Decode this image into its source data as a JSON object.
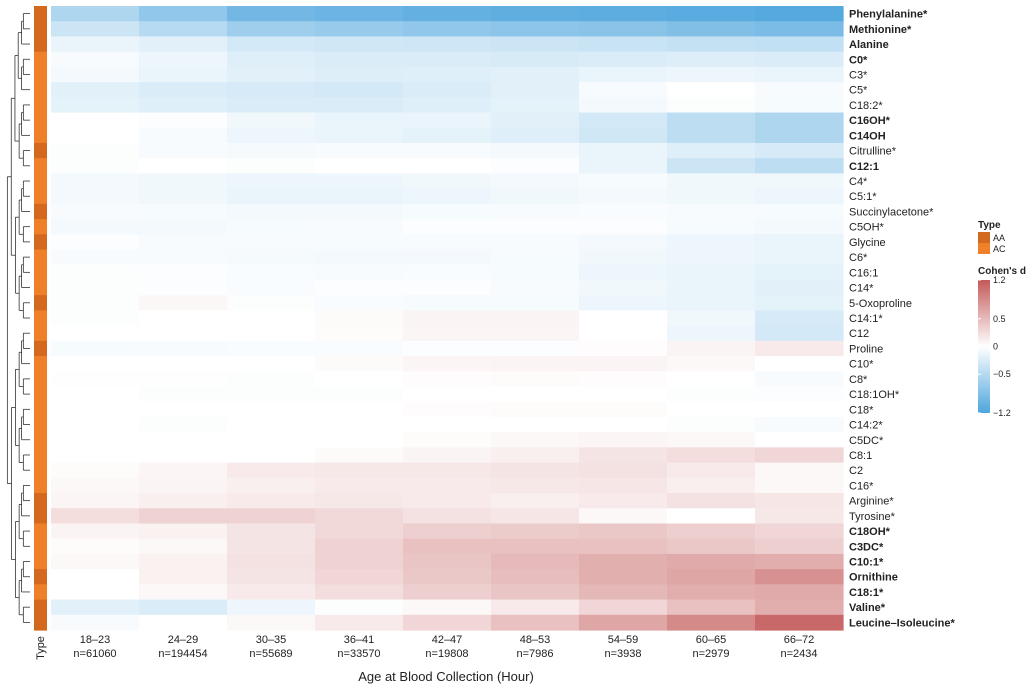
{
  "colors": {
    "AA": "#d2691e",
    "AC": "#f07f2a",
    "neg": "#4ea5dd",
    "mid": "#ffffff",
    "pos": "#c45a5a"
  },
  "chart_data": {
    "type": "heatmap",
    "xlabel": "Age at Blood Collection (Hour)",
    "annotation_label": "Type",
    "columns": [
      {
        "age": "18–23",
        "n": "n=61060"
      },
      {
        "age": "24–29",
        "n": "n=194454"
      },
      {
        "age": "30–35",
        "n": "n=55689"
      },
      {
        "age": "36–41",
        "n": "n=33570"
      },
      {
        "age": "42–47",
        "n": "n=19808"
      },
      {
        "age": "48–53",
        "n": "n=7986"
      },
      {
        "age": "54–59",
        "n": "n=3938"
      },
      {
        "age": "60–65",
        "n": "n=2979"
      },
      {
        "age": "66–72",
        "n": "n=2434"
      }
    ],
    "rows": [
      {
        "label": "Phenylalanine*",
        "bold": true,
        "type": "AA",
        "values": [
          -0.55,
          -0.75,
          -0.95,
          -1.0,
          -1.05,
          -1.08,
          -1.1,
          -1.12,
          -1.15
        ]
      },
      {
        "label": "Methionine*",
        "bold": true,
        "type": "AA",
        "values": [
          -0.35,
          -0.5,
          -0.65,
          -0.7,
          -0.75,
          -0.78,
          -0.8,
          -0.85,
          -0.9
        ]
      },
      {
        "label": "Alanine",
        "bold": true,
        "type": "AA",
        "values": [
          -0.15,
          -0.2,
          -0.3,
          -0.32,
          -0.33,
          -0.35,
          -0.38,
          -0.4,
          -0.42
        ]
      },
      {
        "label": "C0*",
        "bold": true,
        "type": "AC",
        "values": [
          -0.05,
          -0.12,
          -0.22,
          -0.25,
          -0.25,
          -0.27,
          -0.25,
          -0.23,
          -0.25
        ]
      },
      {
        "label": "C3*",
        "bold": false,
        "type": "AC",
        "values": [
          -0.08,
          -0.14,
          -0.2,
          -0.23,
          -0.22,
          -0.2,
          -0.15,
          -0.12,
          -0.15
        ]
      },
      {
        "label": "C5*",
        "bold": false,
        "type": "AC",
        "values": [
          -0.2,
          -0.25,
          -0.28,
          -0.3,
          -0.25,
          -0.2,
          -0.05,
          0.0,
          -0.05
        ]
      },
      {
        "label": "C18:2*",
        "bold": false,
        "type": "AC",
        "values": [
          -0.18,
          -0.22,
          -0.25,
          -0.25,
          -0.22,
          -0.18,
          -0.08,
          -0.02,
          -0.06
        ]
      },
      {
        "label": "C16OH*",
        "bold": true,
        "type": "AC",
        "values": [
          0.0,
          -0.03,
          -0.1,
          -0.15,
          -0.15,
          -0.2,
          -0.3,
          -0.45,
          -0.55
        ]
      },
      {
        "label": "C14OH",
        "bold": true,
        "type": "AC",
        "values": [
          0.0,
          -0.05,
          -0.12,
          -0.15,
          -0.18,
          -0.22,
          -0.32,
          -0.45,
          -0.55
        ]
      },
      {
        "label": "Citrulline*",
        "bold": false,
        "type": "AA",
        "values": [
          -0.02,
          -0.05,
          -0.07,
          -0.05,
          -0.05,
          -0.08,
          -0.15,
          -0.22,
          -0.28
        ]
      },
      {
        "label": "C12:1",
        "bold": true,
        "type": "AC",
        "values": [
          -0.02,
          0.0,
          -0.02,
          0.0,
          0.0,
          -0.03,
          -0.15,
          -0.35,
          -0.45
        ]
      },
      {
        "label": "C4*",
        "bold": false,
        "type": "AC",
        "values": [
          -0.08,
          -0.1,
          -0.12,
          -0.12,
          -0.1,
          -0.08,
          -0.06,
          -0.1,
          -0.1
        ]
      },
      {
        "label": "C5:1*",
        "bold": false,
        "type": "AC",
        "values": [
          -0.08,
          -0.1,
          -0.15,
          -0.15,
          -0.12,
          -0.1,
          -0.08,
          -0.1,
          -0.12
        ]
      },
      {
        "label": "Succinylacetone*",
        "bold": false,
        "type": "AA",
        "values": [
          -0.05,
          -0.06,
          -0.08,
          -0.08,
          -0.06,
          -0.05,
          -0.04,
          -0.05,
          -0.06
        ]
      },
      {
        "label": "C5OH*",
        "bold": false,
        "type": "AC",
        "values": [
          -0.08,
          -0.08,
          -0.06,
          -0.05,
          -0.03,
          -0.03,
          -0.03,
          -0.06,
          -0.08
        ]
      },
      {
        "label": "Glycine",
        "bold": false,
        "type": "AA",
        "values": [
          -0.03,
          -0.05,
          -0.05,
          -0.06,
          -0.05,
          -0.05,
          -0.08,
          -0.12,
          -0.15
        ]
      },
      {
        "label": "C6*",
        "bold": false,
        "type": "AC",
        "values": [
          -0.05,
          -0.05,
          -0.07,
          -0.08,
          -0.08,
          -0.06,
          -0.1,
          -0.12,
          -0.15
        ]
      },
      {
        "label": "C16:1",
        "bold": false,
        "type": "AC",
        "values": [
          -0.02,
          -0.03,
          -0.04,
          -0.05,
          -0.04,
          -0.06,
          -0.12,
          -0.15,
          -0.18
        ]
      },
      {
        "label": "C14*",
        "bold": false,
        "type": "AC",
        "values": [
          -0.02,
          -0.03,
          -0.04,
          -0.03,
          -0.03,
          -0.05,
          -0.1,
          -0.15,
          -0.2
        ]
      },
      {
        "label": "5-Oxoproline",
        "bold": false,
        "type": "AA",
        "values": [
          -0.02,
          0.06,
          -0.02,
          -0.04,
          -0.06,
          -0.06,
          -0.12,
          -0.15,
          -0.18
        ]
      },
      {
        "label": "C14:1*",
        "bold": false,
        "type": "AC",
        "values": [
          -0.02,
          0.0,
          0.0,
          0.04,
          0.08,
          0.08,
          0.0,
          -0.1,
          -0.28
        ]
      },
      {
        "label": "C12",
        "bold": false,
        "type": "AC",
        "values": [
          0.0,
          0.0,
          0.0,
          0.03,
          0.07,
          0.07,
          0.0,
          -0.12,
          -0.3
        ]
      },
      {
        "label": "Proline",
        "bold": false,
        "type": "AA",
        "values": [
          -0.06,
          -0.05,
          -0.04,
          -0.04,
          -0.03,
          -0.03,
          0.02,
          0.08,
          0.15
        ]
      },
      {
        "label": "C10*",
        "bold": false,
        "type": "AC",
        "values": [
          0.0,
          0.0,
          0.0,
          0.04,
          0.07,
          0.08,
          0.08,
          0.05,
          0.0
        ]
      },
      {
        "label": "C8*",
        "bold": false,
        "type": "AC",
        "values": [
          -0.01,
          -0.01,
          -0.02,
          0.0,
          0.02,
          0.03,
          0.02,
          0.0,
          -0.05
        ]
      },
      {
        "label": "C18:1OH*",
        "bold": false,
        "type": "AC",
        "values": [
          0.0,
          -0.02,
          -0.02,
          -0.02,
          0.0,
          0.0,
          0.0,
          -0.02,
          -0.03
        ]
      },
      {
        "label": "C18*",
        "bold": false,
        "type": "AC",
        "values": [
          0.0,
          0.0,
          0.0,
          0.0,
          0.02,
          0.03,
          0.03,
          0.0,
          0.0
        ]
      },
      {
        "label": "C14:2*",
        "bold": false,
        "type": "AC",
        "values": [
          0.0,
          -0.02,
          0.0,
          0.0,
          0.0,
          0.0,
          0.0,
          -0.02,
          -0.05
        ]
      },
      {
        "label": "C5DC*",
        "bold": false,
        "type": "AC",
        "values": [
          0.0,
          0.0,
          0.0,
          0.0,
          0.03,
          0.05,
          0.07,
          0.05,
          0.0
        ]
      },
      {
        "label": "C8:1",
        "bold": false,
        "type": "AC",
        "values": [
          0.0,
          0.0,
          0.0,
          0.04,
          0.08,
          0.12,
          0.2,
          0.25,
          0.3
        ]
      },
      {
        "label": "C2",
        "bold": false,
        "type": "AC",
        "values": [
          0.03,
          0.07,
          0.15,
          0.17,
          0.17,
          0.2,
          0.22,
          0.15,
          0.05
        ]
      },
      {
        "label": "C16*",
        "bold": false,
        "type": "AC",
        "values": [
          0.05,
          0.08,
          0.12,
          0.15,
          0.15,
          0.17,
          0.18,
          0.12,
          0.05
        ]
      },
      {
        "label": "Arginine*",
        "bold": false,
        "type": "AA",
        "values": [
          0.07,
          0.12,
          0.15,
          0.17,
          0.15,
          0.12,
          0.15,
          0.22,
          0.18
        ]
      },
      {
        "label": "Tyrosine*",
        "bold": false,
        "type": "AA",
        "values": [
          0.25,
          0.32,
          0.33,
          0.28,
          0.22,
          0.18,
          0.05,
          0.0,
          0.17
        ]
      },
      {
        "label": "C18OH*",
        "bold": true,
        "type": "AC",
        "values": [
          0.08,
          0.1,
          0.2,
          0.28,
          0.35,
          0.38,
          0.4,
          0.35,
          0.3
        ]
      },
      {
        "label": "C3DC*",
        "bold": true,
        "type": "AC",
        "values": [
          0.03,
          0.05,
          0.2,
          0.33,
          0.45,
          0.45,
          0.45,
          0.4,
          0.35
        ]
      },
      {
        "label": "C10:1*",
        "bold": true,
        "type": "AC",
        "values": [
          0.05,
          0.1,
          0.22,
          0.33,
          0.42,
          0.5,
          0.58,
          0.62,
          0.6
        ]
      },
      {
        "label": "Ornithine",
        "bold": true,
        "type": "AA",
        "values": [
          0.0,
          0.1,
          0.2,
          0.3,
          0.4,
          0.48,
          0.58,
          0.65,
          0.8
        ]
      },
      {
        "label": "C18:1*",
        "bold": true,
        "type": "AC",
        "values": [
          0.0,
          0.05,
          0.15,
          0.25,
          0.35,
          0.42,
          0.52,
          0.6,
          0.62
        ]
      },
      {
        "label": "Valine*",
        "bold": true,
        "type": "AA",
        "values": [
          -0.2,
          -0.25,
          -0.12,
          -0.02,
          0.05,
          0.15,
          0.3,
          0.45,
          0.6
        ]
      },
      {
        "label": "Leucine–Isoleucine*",
        "bold": true,
        "type": "AA",
        "values": [
          -0.05,
          0.0,
          0.05,
          0.15,
          0.3,
          0.45,
          0.65,
          0.85,
          1.1
        ]
      }
    ],
    "type_legend": {
      "title": "Type",
      "items": [
        {
          "key": "AA",
          "label": "AA"
        },
        {
          "key": "AC",
          "label": "AC"
        }
      ]
    },
    "color_legend": {
      "title": "Cohen's d",
      "min": -1.2,
      "max": 1.2,
      "ticks": [
        {
          "value": 1.2,
          "label": "1.2"
        },
        {
          "value": 0.5,
          "label": "0.5"
        },
        {
          "value": 0,
          "label": "0"
        },
        {
          "value": -0.5,
          "label": "−0.5"
        },
        {
          "value": -1.2,
          "label": "−1.2"
        }
      ]
    }
  }
}
